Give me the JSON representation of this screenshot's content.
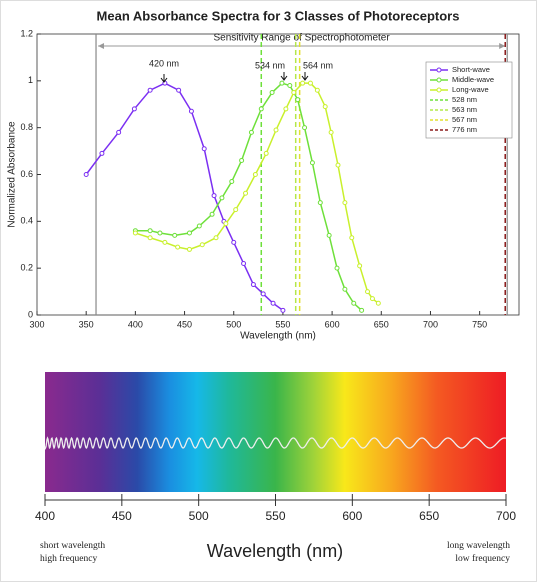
{
  "chart_data": [
    {
      "type": "line",
      "title": "Mean Absorbance Spectra for 3 Classes of Photoreceptors",
      "xlabel": "Wavelength (nm)",
      "ylabel": "Normalized Absorbance",
      "xlim": [
        300,
        790
      ],
      "ylim": [
        0,
        1.2
      ],
      "xticks": [
        300,
        350,
        400,
        450,
        500,
        550,
        600,
        650,
        700,
        750
      ],
      "yticks": [
        0,
        0.2,
        0.4,
        0.6,
        0.8,
        1,
        1.2
      ],
      "series": [
        {
          "name": "Short-wave",
          "color": "#7b2ff2",
          "x": [
            350,
            366,
            383,
            399,
            415,
            430,
            444,
            457,
            470,
            480,
            490,
            500,
            510,
            520,
            530,
            540,
            550
          ],
          "values": [
            0.6,
            0.69,
            0.78,
            0.88,
            0.96,
            0.99,
            0.96,
            0.87,
            0.71,
            0.51,
            0.4,
            0.31,
            0.22,
            0.13,
            0.09,
            0.05,
            0.02
          ]
        },
        {
          "name": "Middle-wave",
          "color": "#6ee03a",
          "x": [
            400,
            415,
            425,
            440,
            455,
            465,
            478,
            488,
            498,
            508,
            518,
            528,
            539,
            549,
            557,
            565,
            572,
            580,
            588,
            597,
            605,
            613,
            622,
            630
          ],
          "values": [
            0.36,
            0.36,
            0.35,
            0.34,
            0.35,
            0.38,
            0.43,
            0.5,
            0.57,
            0.66,
            0.78,
            0.88,
            0.95,
            0.99,
            0.98,
            0.92,
            0.8,
            0.65,
            0.48,
            0.34,
            0.2,
            0.11,
            0.05,
            0.02
          ]
        },
        {
          "name": "Long-wave",
          "color": "#c9f02c",
          "x": [
            400,
            415,
            430,
            443,
            455,
            468,
            482,
            492,
            502,
            512,
            522,
            533,
            543,
            553,
            561,
            570,
            578,
            585,
            593,
            599,
            606,
            613,
            620,
            628,
            636,
            641,
            647
          ],
          "values": [
            0.35,
            0.33,
            0.31,
            0.29,
            0.28,
            0.3,
            0.33,
            0.39,
            0.45,
            0.52,
            0.6,
            0.69,
            0.79,
            0.88,
            0.95,
            0.99,
            0.99,
            0.96,
            0.89,
            0.78,
            0.64,
            0.48,
            0.33,
            0.21,
            0.1,
            0.07,
            0.05
          ]
        }
      ],
      "vlines": [
        {
          "name": "528 nm",
          "color": "#6ee03a",
          "x": 528
        },
        {
          "name": "563 nm",
          "color": "#b4e84a",
          "x": 563
        },
        {
          "name": "567 nm",
          "color": "#e2e030",
          "x": 567
        },
        {
          "name": "776 nm",
          "color": "#8b1a1a",
          "x": 776
        }
      ],
      "range": {
        "label": "Sensitivity Range of Spectrophotometer",
        "x": [
          360,
          778
        ]
      },
      "annotations": [
        "420 nm",
        "534 nm",
        "564 nm"
      ],
      "legend": "upper right"
    },
    {
      "type": "spectrum",
      "xlabel": "Wavelength (nm)",
      "xlim": [
        400,
        700
      ],
      "xticks": [
        400,
        450,
        500,
        550,
        600,
        650,
        700
      ],
      "left_note": [
        "short wavelength",
        "high frequency"
      ],
      "right_note": [
        "long wavelength",
        "low frequency"
      ]
    }
  ]
}
